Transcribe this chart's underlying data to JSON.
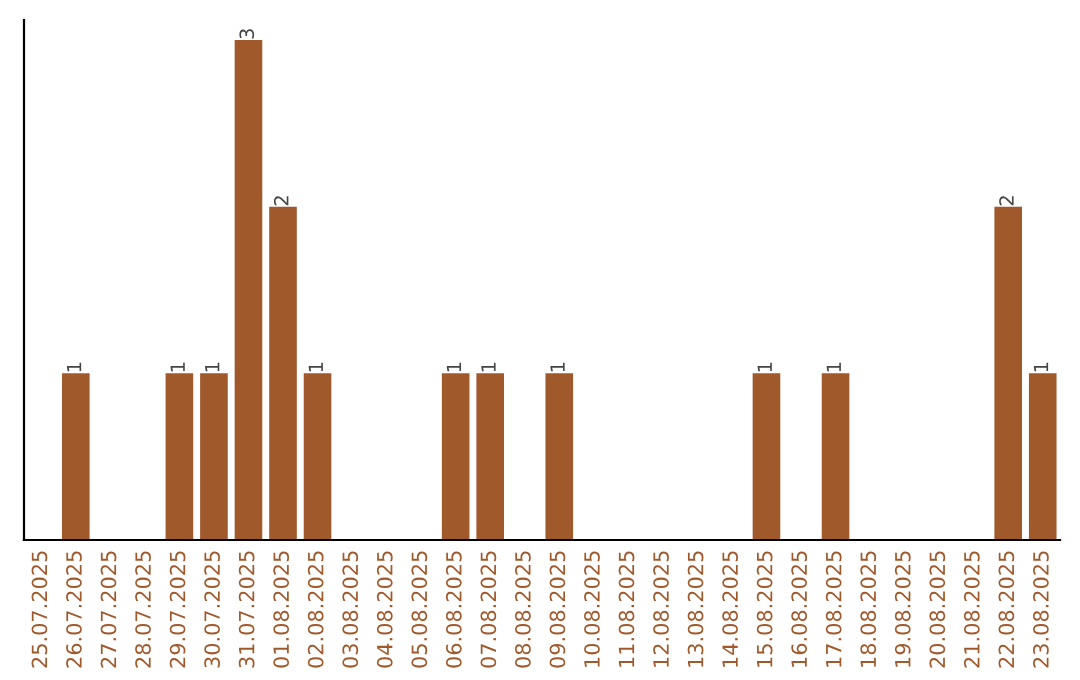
{
  "chart_data": {
    "type": "bar",
    "categories": [
      "25.07.2025",
      "26.07.2025",
      "27.07.2025",
      "28.07.2025",
      "29.07.2025",
      "30.07.2025",
      "31.07.2025",
      "01.08.2025",
      "02.08.2025",
      "03.08.2025",
      "04.08.2025",
      "05.08.2025",
      "06.08.2025",
      "07.08.2025",
      "08.08.2025",
      "09.08.2025",
      "10.08.2025",
      "11.08.2025",
      "12.08.2025",
      "13.08.2025",
      "14.08.2025",
      "15.08.2025",
      "16.08.2025",
      "17.08.2025",
      "18.08.2025",
      "19.08.2025",
      "20.08.2025",
      "21.08.2025",
      "22.08.2025",
      "23.08.2025"
    ],
    "values": [
      0,
      1,
      0,
      0,
      1,
      1,
      3,
      2,
      1,
      0,
      0,
      0,
      1,
      1,
      0,
      1,
      0,
      0,
      0,
      0,
      0,
      1,
      0,
      1,
      0,
      0,
      0,
      0,
      2,
      1
    ],
    "value_labels": [
      null,
      "1",
      null,
      null,
      "1",
      "1",
      "3",
      "2",
      "1",
      null,
      null,
      null,
      "1",
      "1",
      null,
      "1",
      null,
      null,
      null,
      null,
      null,
      "1",
      null,
      "1",
      null,
      null,
      null,
      null,
      "2",
      "1"
    ],
    "color": "#a0592b",
    "ylim": [
      0,
      3.12
    ],
    "tick_labels": "x",
    "grid": false,
    "legend": false
  }
}
